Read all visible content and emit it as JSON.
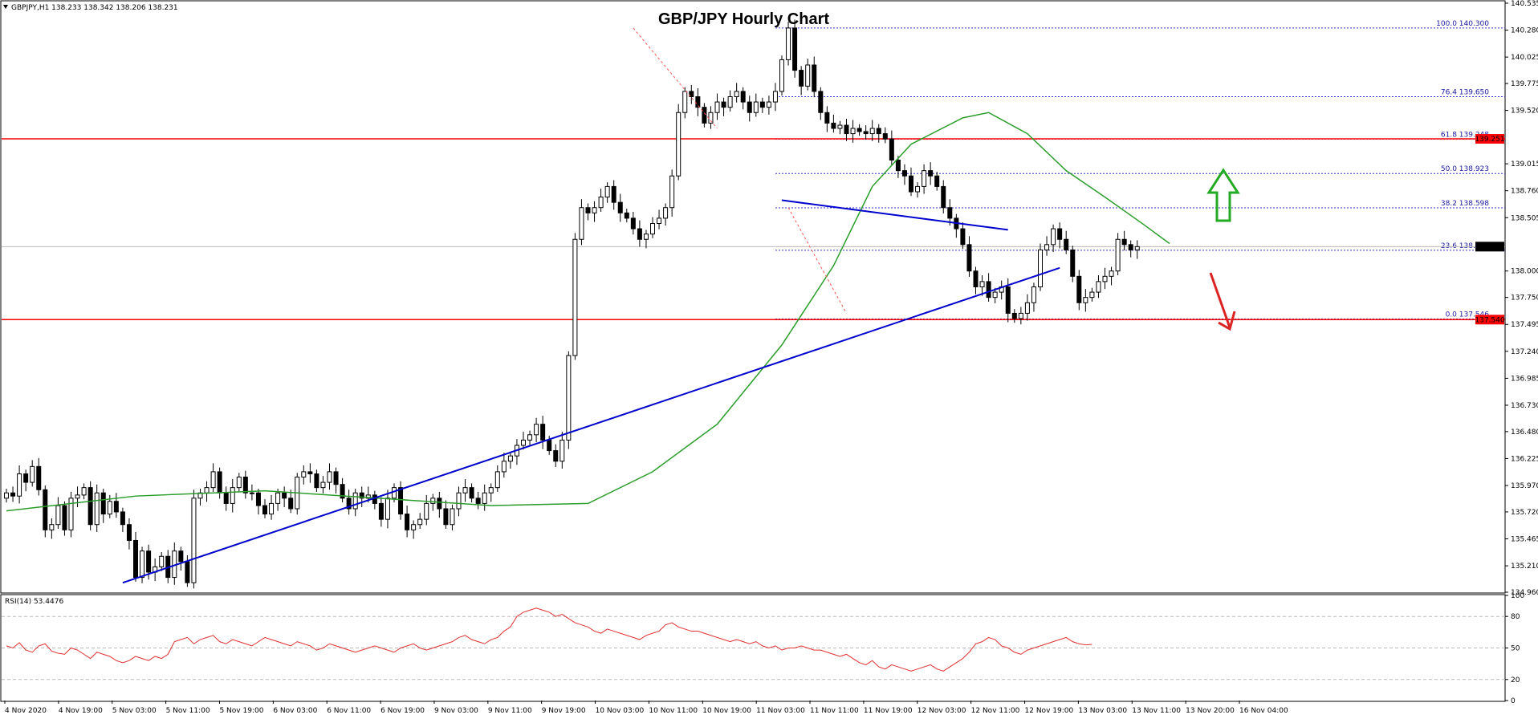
{
  "header": {
    "symbol_info": "GBPJPY,H1  138.233 138.342 138.206 138.231",
    "title": "GBP/JPY Hourly Chart"
  },
  "rsi_label": "RSI(14) 53.4476",
  "colors": {
    "support_resistance": "#ff0000",
    "trendline": "#0000cc",
    "moving_average": "#2a9d2a",
    "fib": "#3333cc",
    "rsi_line": "#e03030",
    "up_arrow": "#22aa22",
    "down_arrow": "#dd2222",
    "candle": "#000000"
  },
  "icons": [
    "up-arrow-icon",
    "down-arrow-icon",
    "menu-triangle-icon"
  ],
  "chart_data": {
    "type": "candlestick",
    "title": "GBP/JPY Hourly Chart",
    "ylim": [
      134.96,
      140.55
    ],
    "y_ticks": [
      "140.535",
      "140.280",
      "140.025",
      "139.775",
      "139.520",
      "139.015",
      "138.760",
      "138.505",
      "138.000",
      "137.750",
      "137.495",
      "137.240",
      "136.985",
      "136.730",
      "136.480",
      "136.225",
      "135.970",
      "135.720",
      "135.465",
      "135.210",
      "134.960"
    ],
    "x_ticks": [
      "4 Nov 2020",
      "4 Nov 19:00",
      "5 Nov 03:00",
      "5 Nov 11:00",
      "5 Nov 19:00",
      "6 Nov 03:00",
      "6 Nov 11:00",
      "6 Nov 19:00",
      "9 Nov 03:00",
      "9 Nov 11:00",
      "9 Nov 19:00",
      "10 Nov 03:00",
      "10 Nov 11:00",
      "10 Nov 19:00",
      "11 Nov 03:00",
      "11 Nov 11:00",
      "11 Nov 19:00",
      "12 Nov 03:00",
      "12 Nov 11:00",
      "12 Nov 19:00",
      "13 Nov 03:00",
      "13 Nov 11:00",
      "13 Nov 20:00",
      "16 Nov 04:00"
    ],
    "current_price": "138.231",
    "current_value": 138.231,
    "horizontal_levels": [
      {
        "label": "139.251",
        "value": 139.251
      },
      {
        "label": "137.540",
        "value": 137.54
      }
    ],
    "fib_levels": [
      {
        "label": "100.0 140.300",
        "value": 140.3
      },
      {
        "label": "76.4 139.650",
        "value": 139.65
      },
      {
        "label": "61.8 139.248",
        "value": 139.248
      },
      {
        "label": "50.0 138.923",
        "value": 138.923
      },
      {
        "label": "38.2 138.598",
        "value": 138.598
      },
      {
        "label": "23.6 138.196",
        "value": 138.196
      },
      {
        "label": "0.0 137.546",
        "value": 137.546
      }
    ],
    "bars": [
      135.9,
      135.87,
      136.08,
      136.0,
      136.15,
      135.93,
      135.55,
      135.6,
      135.78,
      135.55,
      135.85,
      135.88,
      135.95,
      135.6,
      135.9,
      135.7,
      135.82,
      135.72,
      135.6,
      135.45,
      135.1,
      135.35,
      135.15,
      135.2,
      135.3,
      135.1,
      135.35,
      135.25,
      135.05,
      135.85,
      135.9,
      135.95,
      136.1,
      135.9,
      135.8,
      135.95,
      136.05,
      135.9,
      135.9,
      135.78,
      135.7,
      135.8,
      135.9,
      135.85,
      135.75,
      136.05,
      136.1,
      136.08,
      135.95,
      136.0,
      136.1,
      135.98,
      135.85,
      135.75,
      135.9,
      135.85,
      135.88,
      135.8,
      135.65,
      135.85,
      135.95,
      135.7,
      135.55,
      135.6,
      135.65,
      135.8,
      135.85,
      135.75,
      135.6,
      135.75,
      135.9,
      135.95,
      135.85,
      135.8,
      135.9,
      135.95,
      136.1,
      136.2,
      136.25,
      136.35,
      136.4,
      136.45,
      136.55,
      136.4,
      136.3,
      136.2,
      136.4,
      137.2,
      138.3,
      138.6,
      138.55,
      138.6,
      138.7,
      138.8,
      138.65,
      138.55,
      138.5,
      138.4,
      138.3,
      138.35,
      138.45,
      138.5,
      138.6,
      138.9,
      139.5,
      139.7,
      139.65,
      139.55,
      139.4,
      139.5,
      139.6,
      139.55,
      139.65,
      139.7,
      139.6,
      139.5,
      139.6,
      139.55,
      139.6,
      139.7,
      140.0,
      140.3,
      139.9,
      139.75,
      139.95,
      139.7,
      139.5,
      139.4,
      139.35,
      139.38,
      139.3,
      139.35,
      139.32,
      139.3,
      139.35,
      139.3,
      139.25,
      139.05,
      138.95,
      138.9,
      138.75,
      138.8,
      138.95,
      138.9,
      138.8,
      138.6,
      138.5,
      138.4,
      138.25,
      138.0,
      137.85,
      137.9,
      137.75,
      137.8,
      137.85,
      137.6,
      137.55,
      137.6,
      137.7,
      137.85,
      138.2,
      138.25,
      138.4,
      138.3,
      138.2,
      137.95,
      137.7,
      137.75,
      137.8,
      137.9,
      137.95,
      138.0,
      138.3,
      138.25,
      138.2,
      138.231
    ],
    "moving_average": [
      [
        0,
        135.73
      ],
      [
        20,
        135.87
      ],
      [
        40,
        135.92
      ],
      [
        60,
        135.84
      ],
      [
        75,
        135.78
      ],
      [
        90,
        135.8
      ],
      [
        100,
        136.1
      ],
      [
        110,
        136.55
      ],
      [
        120,
        137.3
      ],
      [
        128,
        138.05
      ],
      [
        134,
        138.8
      ],
      [
        140,
        139.2
      ],
      [
        148,
        139.45
      ],
      [
        152,
        139.5
      ],
      [
        158,
        139.3
      ],
      [
        164,
        138.95
      ],
      [
        170,
        138.7
      ],
      [
        176,
        138.44
      ],
      [
        180,
        138.26
      ]
    ],
    "rsi": {
      "ylim": [
        0,
        100
      ],
      "y_ticks": [
        "100",
        "80",
        "50",
        "20",
        "0"
      ],
      "values": [
        52,
        50,
        55,
        48,
        46,
        52,
        54,
        47,
        45,
        44,
        50,
        48,
        44,
        40,
        46,
        44,
        42,
        38,
        36,
        38,
        42,
        40,
        38,
        42,
        40,
        44,
        56,
        58,
        60,
        54,
        58,
        60,
        62,
        56,
        54,
        58,
        56,
        54,
        52,
        56,
        60,
        58,
        56,
        54,
        52,
        56,
        54,
        52,
        48,
        50,
        54,
        52,
        50,
        48,
        46,
        48,
        50,
        52,
        50,
        48,
        46,
        50,
        52,
        54,
        50,
        48,
        50,
        52,
        54,
        56,
        60,
        62,
        58,
        56,
        54,
        58,
        60,
        66,
        70,
        80,
        84,
        86,
        88,
        86,
        84,
        80,
        82,
        78,
        74,
        72,
        70,
        66,
        64,
        68,
        66,
        64,
        62,
        60,
        58,
        62,
        64,
        66,
        72,
        74,
        70,
        68,
        66,
        66,
        64,
        62,
        60,
        58,
        56,
        58,
        56,
        54,
        56,
        52,
        50,
        52,
        48,
        50,
        50,
        52,
        50,
        48,
        48,
        46,
        44,
        42,
        44,
        40,
        36,
        34,
        38,
        32,
        30,
        34,
        32,
        30,
        28,
        30,
        32,
        34,
        30,
        28,
        32,
        36,
        40,
        46,
        54,
        56,
        60,
        58,
        52,
        50,
        46,
        44,
        48,
        50,
        52,
        54,
        56,
        58,
        60,
        56,
        54,
        53,
        53.45
      ]
    }
  }
}
